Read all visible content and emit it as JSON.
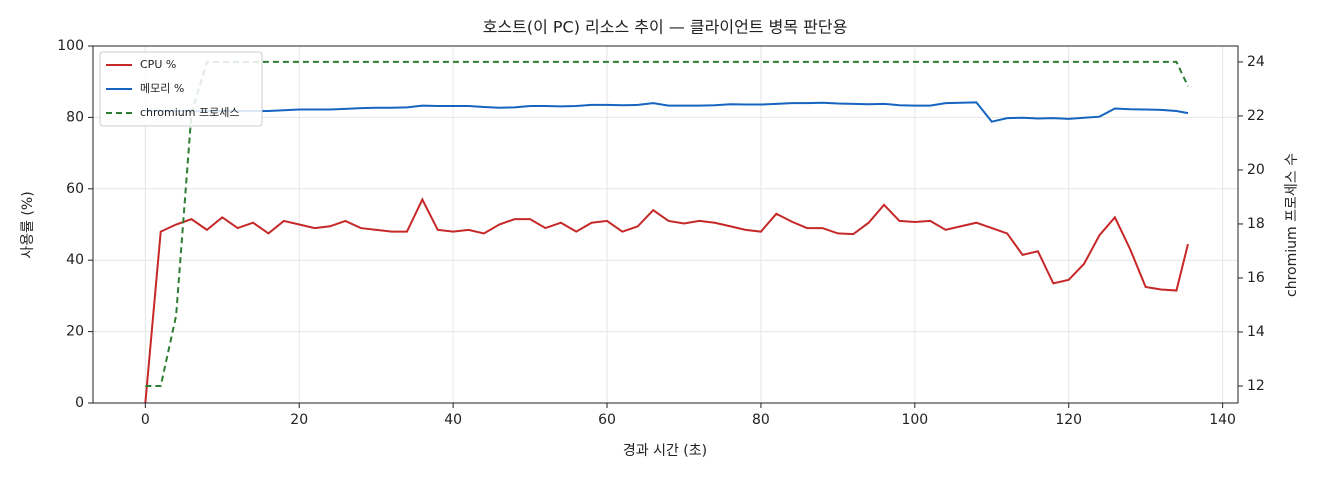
{
  "chart_data": {
    "type": "line",
    "title": "호스트(이 PC) 리소스 추이 — 클라이언트 병목 판단용",
    "x_label": "경과 시간 (초)",
    "y_label": "사용률 (%)",
    "y2_label": "chromium 프로세스 수",
    "x": [
      0,
      2,
      4,
      6,
      8,
      10,
      12,
      14,
      16,
      18,
      20,
      22,
      24,
      26,
      28,
      30,
      32,
      34,
      36,
      38,
      40,
      42,
      44,
      46,
      48,
      50,
      52,
      54,
      56,
      58,
      60,
      62,
      64,
      66,
      68,
      70,
      72,
      74,
      76,
      78,
      80,
      82,
      84,
      86,
      88,
      90,
      92,
      94,
      96,
      98,
      100,
      102,
      104,
      106,
      108,
      110,
      112,
      114,
      116,
      118,
      120,
      122,
      124,
      126,
      128,
      130,
      132,
      134,
      135.5
    ],
    "series": [
      {
        "name": "CPU %",
        "color": "#c62828",
        "values": [
          0,
          48,
          50,
          51.5,
          48.5,
          52,
          49,
          50.5,
          47.5,
          51,
          50,
          49,
          49.5,
          51,
          49,
          48.5,
          48,
          48,
          57,
          48.5,
          48,
          48.5,
          47.5,
          50,
          51.5,
          51.5,
          49,
          50.5,
          48,
          50.5,
          51,
          48,
          49.5,
          54,
          51,
          50.3,
          51,
          50.5,
          49.5,
          48.5,
          48,
          53,
          50.8,
          49,
          49,
          47.5,
          47.3,
          50.5,
          55.5,
          51,
          50.7,
          51,
          48.5,
          49.5,
          50.5,
          49,
          47.5,
          41.5,
          42.5,
          33.5,
          34.5,
          39,
          47,
          52,
          43,
          32.5,
          31.8,
          31.5,
          44.5
        ]
      },
      {
        "name": "메모리 %",
        "color": "#1565c0",
        "values": [
          81.8,
          81.8,
          81.8,
          81.8,
          81.8,
          81.8,
          81.8,
          81.8,
          81.8,
          82,
          82.2,
          82.2,
          82.2,
          82.4,
          82.6,
          82.7,
          82.7,
          82.8,
          83.3,
          83.2,
          83.2,
          83.2,
          82.9,
          82.7,
          82.8,
          83.2,
          83.2,
          83.1,
          83.2,
          83.5,
          83.5,
          83.4,
          83.5,
          84,
          83.3,
          83.3,
          83.3,
          83.4,
          83.7,
          83.6,
          83.6,
          83.8,
          84,
          84,
          84.1,
          83.9,
          83.8,
          83.7,
          83.8,
          83.4,
          83.3,
          83.3,
          84,
          84.1,
          84.2,
          78.8,
          79.8,
          79.9,
          79.7,
          79.8,
          79.6,
          79.9,
          80.2,
          82.5,
          82.3,
          82.2,
          82.1,
          81.8,
          81.2
        ]
      },
      {
        "name": "chromium 프로세스",
        "color": "#2e7d32",
        "dashed": true,
        "axis": "y2",
        "values": [
          12,
          12,
          14.6,
          22.1,
          24,
          24,
          24,
          24,
          24,
          24,
          24,
          24,
          24,
          24,
          24,
          24,
          24,
          24,
          24,
          24,
          24,
          24,
          24,
          24,
          24,
          24,
          24,
          24,
          24,
          24,
          24,
          24,
          24,
          24,
          24,
          24,
          24,
          24,
          24,
          24,
          24,
          24,
          24,
          24,
          24,
          24,
          24,
          24,
          24,
          24,
          24,
          24,
          24,
          24,
          24,
          24,
          24,
          24,
          24,
          24,
          24,
          24,
          24,
          24,
          24,
          24,
          24,
          24,
          23.1
        ]
      }
    ],
    "xlim": [
      -6.8,
      142
    ],
    "xticks": [
      0,
      20,
      40,
      60,
      80,
      100,
      120,
      140
    ],
    "ylim": [
      0,
      100
    ],
    "yticks": [
      0,
      20,
      40,
      60,
      80,
      100
    ],
    "y2lim": [
      11.37,
      24.59
    ],
    "y2ticks": [
      12,
      14,
      16,
      18,
      20,
      22,
      24
    ],
    "grid": true,
    "legend": "upper-left"
  }
}
